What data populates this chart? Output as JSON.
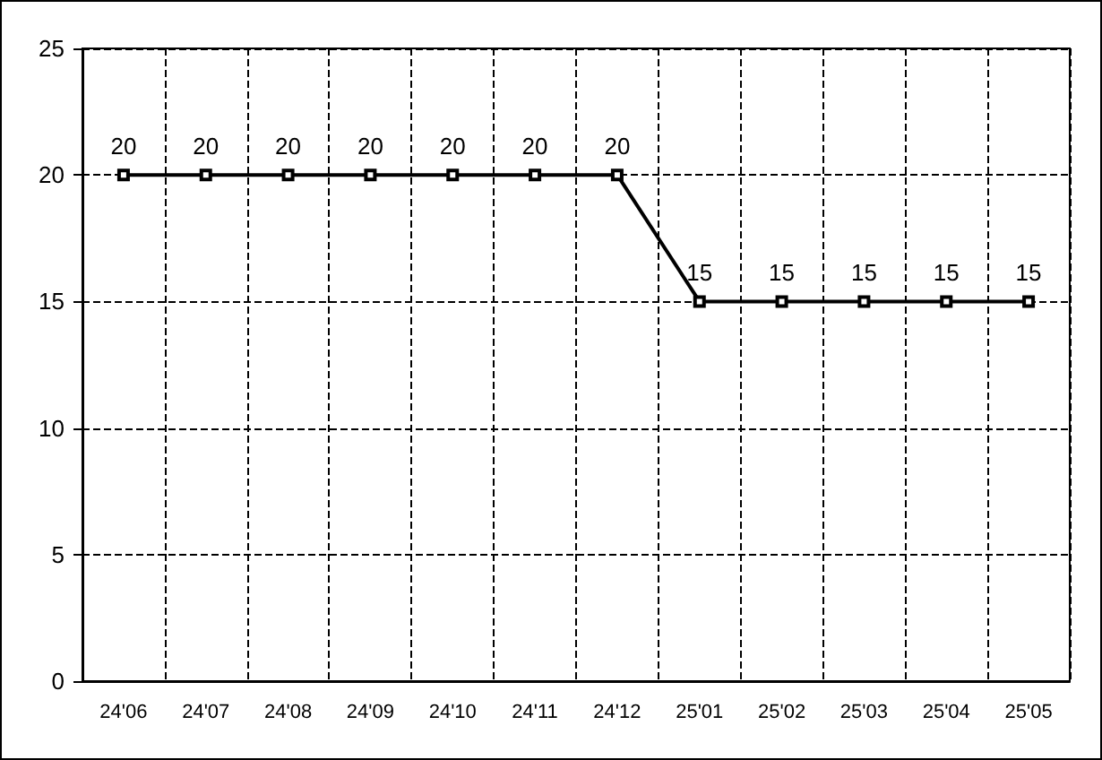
{
  "chart_data": {
    "type": "line",
    "categories": [
      "24'06",
      "24'07",
      "24'08",
      "24'09",
      "24'10",
      "24'11",
      "24'12",
      "25'01",
      "25'02",
      "25'03",
      "25'04",
      "25'05"
    ],
    "series": [
      {
        "color": "#000000",
        "values": [
          20,
          20,
          20,
          20,
          20,
          20,
          20,
          15,
          15,
          15,
          15,
          15
        ]
      }
    ],
    "ylim": [
      0,
      25
    ],
    "yticks": [
      0,
      5,
      10,
      15,
      20,
      25
    ],
    "grid": true,
    "marker": "square",
    "line_style": "solid",
    "data_labels": true
  }
}
